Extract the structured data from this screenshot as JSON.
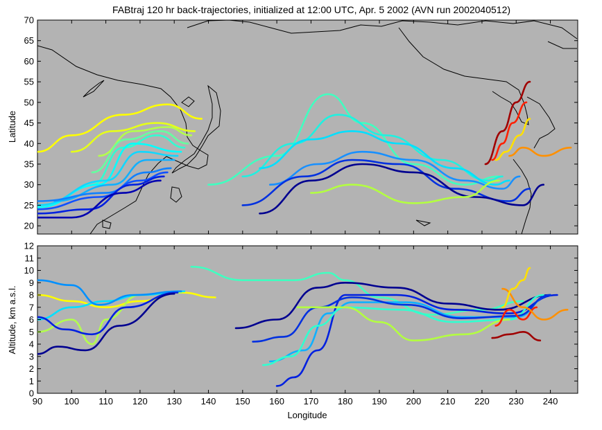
{
  "chart_data": [
    {
      "type": "line",
      "title": "FABtraj 120 hr back-trajectories, initialized at 12:00 UTC, Apr. 5 2002 (AVN run 2002040512)",
      "xlabel": "",
      "ylabel": "Latitude",
      "xlim": [
        90,
        248
      ],
      "ylim": [
        18,
        70
      ],
      "yticks": [
        20,
        25,
        30,
        35,
        40,
        45,
        50,
        55,
        60,
        65,
        70
      ],
      "background": "#b3b3b3",
      "grid": false,
      "series": [
        {
          "color": "#ffff00",
          "x": [
            90,
            100,
            115,
            128,
            138
          ],
          "y": [
            38,
            42,
            47,
            49.5,
            46
          ]
        },
        {
          "color": "#e6ff19",
          "x": [
            100,
            112,
            125,
            136
          ],
          "y": [
            38,
            43,
            45,
            43
          ]
        },
        {
          "color": "#b3ff4c",
          "x": [
            108,
            118,
            128,
            135
          ],
          "y": [
            37,
            43,
            44,
            42
          ]
        },
        {
          "color": "#66ffa0",
          "x": [
            106,
            116,
            126,
            134
          ],
          "y": [
            33,
            41,
            43,
            40
          ]
        },
        {
          "color": "#30ffd0",
          "x": [
            106,
            115,
            125,
            133
          ],
          "y": [
            30,
            39,
            42,
            39
          ]
        },
        {
          "color": "#00ffff",
          "x": [
            90,
            108,
            118,
            132
          ],
          "y": [
            24.5,
            30,
            40,
            38
          ]
        },
        {
          "color": "#10d8ff",
          "x": [
            90,
            110,
            120,
            131
          ],
          "y": [
            25,
            31,
            38,
            37
          ]
        },
        {
          "color": "#10b0ff",
          "x": [
            95,
            112,
            122,
            130
          ],
          "y": [
            26,
            30,
            36,
            36
          ]
        },
        {
          "color": "#1080ff",
          "x": [
            90,
            110,
            122,
            129
          ],
          "y": [
            26,
            28,
            33,
            34
          ]
        },
        {
          "color": "#1050ff",
          "x": [
            90,
            108,
            120,
            128
          ],
          "y": [
            24,
            27,
            31,
            33
          ]
        },
        {
          "color": "#0020e0",
          "x": [
            90,
            105,
            118,
            127
          ],
          "y": [
            23,
            24,
            30,
            32
          ]
        },
        {
          "color": "#0000b0",
          "x": [
            90,
            100,
            115,
            126
          ],
          "y": [
            22,
            22,
            28,
            31
          ]
        },
        {
          "color": "#40ffc0",
          "x": [
            140,
            160,
            175,
            185,
            200,
            215,
            225
          ],
          "y": [
            30,
            37,
            52,
            45,
            35,
            30,
            32
          ]
        },
        {
          "color": "#20f0e0",
          "x": [
            150,
            165,
            178,
            192,
            208,
            222,
            226
          ],
          "y": [
            32,
            40,
            47,
            42,
            36,
            31,
            32
          ]
        },
        {
          "color": "#00e0ff",
          "x": [
            155,
            170,
            182,
            196,
            212,
            224,
            228
          ],
          "y": [
            34,
            41,
            43,
            40,
            34,
            30,
            31
          ]
        },
        {
          "color": "#1890ff",
          "x": [
            158,
            172,
            185,
            200,
            215,
            226,
            231
          ],
          "y": [
            30,
            35,
            38,
            36,
            31,
            29,
            32
          ]
        },
        {
          "color": "#0030e0",
          "x": [
            150,
            168,
            182,
            196,
            212,
            228,
            234
          ],
          "y": [
            25,
            32,
            36,
            35,
            29,
            26,
            29
          ]
        },
        {
          "color": "#000090",
          "x": [
            155,
            170,
            185,
            200,
            218,
            232,
            238
          ],
          "y": [
            23,
            31,
            35,
            33,
            27,
            25,
            30
          ]
        },
        {
          "color": "#b3ff40",
          "x": [
            170,
            182,
            200,
            215,
            225
          ],
          "y": [
            28,
            30,
            25.5,
            27,
            31
          ]
        },
        {
          "color": "#a00000",
          "x": [
            221,
            226,
            230,
            234
          ],
          "y": [
            35,
            43,
            50,
            55
          ]
        },
        {
          "color": "#ff2000",
          "x": [
            223,
            226,
            229,
            233
          ],
          "y": [
            36,
            40,
            45,
            50
          ]
        },
        {
          "color": "#ff9000",
          "x": [
            228,
            232,
            238,
            246
          ],
          "y": [
            37,
            39,
            37,
            39
          ]
        },
        {
          "color": "#ffe000",
          "x": [
            224,
            227,
            231,
            234
          ],
          "y": [
            36,
            38,
            42,
            46
          ]
        }
      ]
    },
    {
      "type": "line",
      "title": "",
      "xlabel": "Longitude",
      "ylabel": "Altitude, km a.s.l.",
      "xlim": [
        90,
        248
      ],
      "ylim": [
        0,
        12
      ],
      "xticks": [
        90,
        100,
        110,
        120,
        130,
        140,
        150,
        160,
        170,
        180,
        190,
        200,
        210,
        220,
        230,
        240
      ],
      "yticks": [
        0,
        1,
        2,
        3,
        4,
        5,
        6,
        7,
        8,
        9,
        10,
        11,
        12
      ],
      "background": "#b3b3b3",
      "grid": false,
      "series": [
        {
          "color": "#ffff00",
          "x": [
            90,
            100,
            110,
            120,
            132,
            142
          ],
          "y": [
            8,
            7.5,
            7,
            7.5,
            8.2,
            7.8
          ]
        },
        {
          "color": "#b3ff4c",
          "x": [
            90,
            100,
            106,
            110,
            120,
            132
          ],
          "y": [
            5,
            6,
            4,
            6,
            8,
            8.2
          ]
        },
        {
          "color": "#40ffc0",
          "x": [
            135,
            150,
            165,
            175,
            180,
            190,
            205,
            220,
            232
          ],
          "y": [
            10.3,
            9.2,
            9.2,
            9.8,
            9.2,
            7.8,
            6.4,
            6.8,
            7.5
          ]
        },
        {
          "color": "#00e0ff",
          "x": [
            90,
            100,
            110,
            120,
            133
          ],
          "y": [
            6,
            7,
            7.5,
            8,
            8.3
          ]
        },
        {
          "color": "#0090ff",
          "x": [
            90,
            100,
            108,
            118,
            132
          ],
          "y": [
            9.2,
            8.8,
            7.2,
            8,
            8.3
          ]
        },
        {
          "color": "#0020e0",
          "x": [
            90,
            98,
            106,
            116,
            131
          ],
          "y": [
            6.2,
            5.2,
            4.8,
            7,
            8.2
          ]
        },
        {
          "color": "#000090",
          "x": [
            90,
            96,
            104,
            114,
            130
          ],
          "y": [
            3.2,
            3.8,
            3.5,
            5.5,
            8.1
          ]
        },
        {
          "color": "#000090",
          "x": [
            148,
            160,
            172,
            180,
            195,
            210,
            225,
            240
          ],
          "y": [
            5.3,
            6,
            8.6,
            9,
            8.6,
            7.3,
            6.8,
            8
          ]
        },
        {
          "color": "#0020e0",
          "x": [
            160,
            165,
            172,
            180,
            195,
            212,
            228,
            242
          ],
          "y": [
            0.6,
            1.3,
            3.5,
            8,
            8,
            6.8,
            6.5,
            8
          ]
        },
        {
          "color": "#10b0ff",
          "x": [
            158,
            168,
            175,
            182,
            198,
            214,
            230,
            240
          ],
          "y": [
            2.6,
            3.5,
            6.5,
            7.4,
            7.4,
            6.2,
            6.2,
            8
          ]
        },
        {
          "color": "#30ffd0",
          "x": [
            156,
            164,
            172,
            180,
            196,
            212,
            228,
            238
          ],
          "y": [
            2.3,
            3,
            5.5,
            7,
            6.8,
            5.8,
            6,
            8
          ]
        },
        {
          "color": "#0030e0",
          "x": [
            153,
            162,
            172,
            182,
            198,
            214,
            230,
            240
          ],
          "y": [
            4.2,
            4.6,
            7,
            7.8,
            7.2,
            6.1,
            6.3,
            8
          ]
        },
        {
          "color": "#b3ff40",
          "x": [
            166,
            180,
            190,
            200,
            215,
            228
          ],
          "y": [
            7,
            7,
            5.8,
            4.3,
            4.8,
            6
          ]
        },
        {
          "color": "#a00000",
          "x": [
            223,
            228,
            232,
            237
          ],
          "y": [
            4.5,
            4.8,
            5,
            4.3
          ]
        },
        {
          "color": "#ff2000",
          "x": [
            224,
            228,
            232,
            236
          ],
          "y": [
            5.5,
            6.8,
            6,
            7
          ]
        },
        {
          "color": "#ff9000",
          "x": [
            226,
            232,
            238,
            245
          ],
          "y": [
            8.5,
            7,
            6,
            6.8
          ]
        },
        {
          "color": "#ffe000",
          "x": [
            226,
            229,
            232,
            234
          ],
          "y": [
            7,
            8.5,
            9.2,
            10.2
          ]
        }
      ]
    }
  ]
}
